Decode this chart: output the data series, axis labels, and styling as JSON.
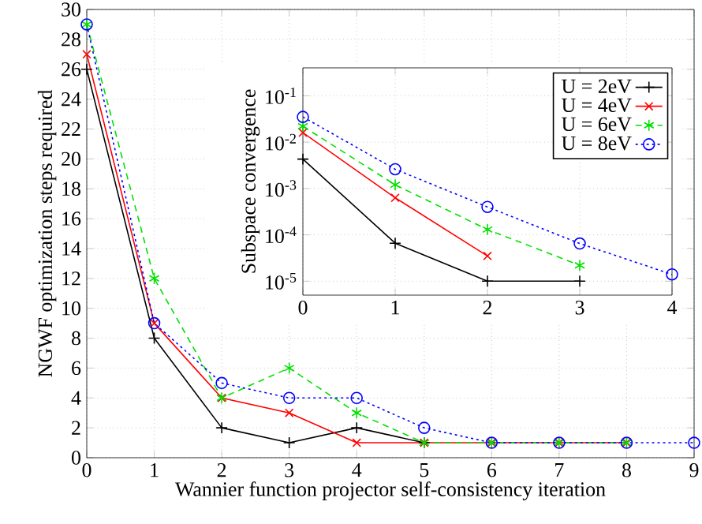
{
  "chart_data": [
    {
      "type": "line",
      "xlabel": "Wannier function projector self-consistency iteration",
      "ylabel": "NGWF optimization steps required",
      "x": [
        0,
        1,
        2,
        3,
        4,
        5,
        6,
        7,
        8,
        9
      ],
      "xlim": [
        0,
        9
      ],
      "ylim": [
        0,
        30
      ],
      "xticks": [
        0,
        1,
        2,
        3,
        4,
        5,
        6,
        7,
        8,
        9
      ],
      "yticks": [
        0,
        2,
        4,
        6,
        8,
        10,
        12,
        14,
        16,
        18,
        20,
        22,
        24,
        26,
        28,
        30
      ],
      "grid": true,
      "series": [
        {
          "color": "#000000",
          "marker": "plus",
          "line_style": "solid",
          "values": [
            26,
            8,
            2,
            1,
            2,
            1,
            null,
            null,
            null,
            null
          ]
        },
        {
          "color": "#ff0000",
          "marker": "x",
          "line_style": "solid",
          "values": [
            27,
            9,
            4,
            3,
            1,
            1,
            1,
            1,
            1,
            null
          ]
        },
        {
          "color": "#00e000",
          "marker": "cross",
          "line_style": "dashed",
          "values": [
            29,
            12,
            4,
            6,
            3,
            1,
            1,
            1,
            1,
            null
          ]
        },
        {
          "color": "#0000ff",
          "marker": "circle",
          "line_style": "dotted",
          "values": [
            29,
            9,
            5,
            4,
            4,
            2,
            1,
            1,
            1,
            1
          ]
        }
      ]
    },
    {
      "type": "line",
      "ylabel": "Subspace convergence",
      "x": [
        0,
        1,
        2,
        3,
        4
      ],
      "xlim": [
        0,
        4
      ],
      "ylim": [
        5e-06,
        0.4
      ],
      "log": "y",
      "xticks": [
        0,
        1,
        2,
        3,
        4
      ],
      "yticks": [
        {
          "value": 1e-05,
          "label": "10$^{-5}$"
        },
        {
          "value": 0.0001,
          "label": "10$^{-4}$"
        },
        {
          "value": 0.001,
          "label": "10$^{-3}$"
        },
        {
          "value": 0.01,
          "label": "10$^{-2}$"
        },
        {
          "value": 0.1,
          "label": "10$^{-1}$"
        }
      ],
      "grid": true,
      "legend": "top right",
      "series": [
        {
          "name": "U = 2eV",
          "color": "#000000",
          "marker": "plus",
          "line_style": "solid",
          "values": [
            0.0043,
            6.6e-05,
            1e-05,
            1e-05,
            null
          ]
        },
        {
          "name": "U = 4eV",
          "color": "#ff0000",
          "marker": "x",
          "line_style": "solid",
          "values": [
            0.016,
            0.00063,
            3.5e-05,
            null,
            null
          ]
        },
        {
          "name": "U = 6eV",
          "color": "#00e000",
          "marker": "cross",
          "line_style": "dashed",
          "values": [
            0.022,
            0.0012,
            0.00013,
            2.2e-05,
            null
          ]
        },
        {
          "name": "U = 8eV",
          "color": "#0000ff",
          "marker": "circle",
          "line_style": "dotted",
          "values": [
            0.035,
            0.0026,
            0.0004,
            6.5e-05,
            1.4e-05
          ]
        }
      ]
    }
  ]
}
